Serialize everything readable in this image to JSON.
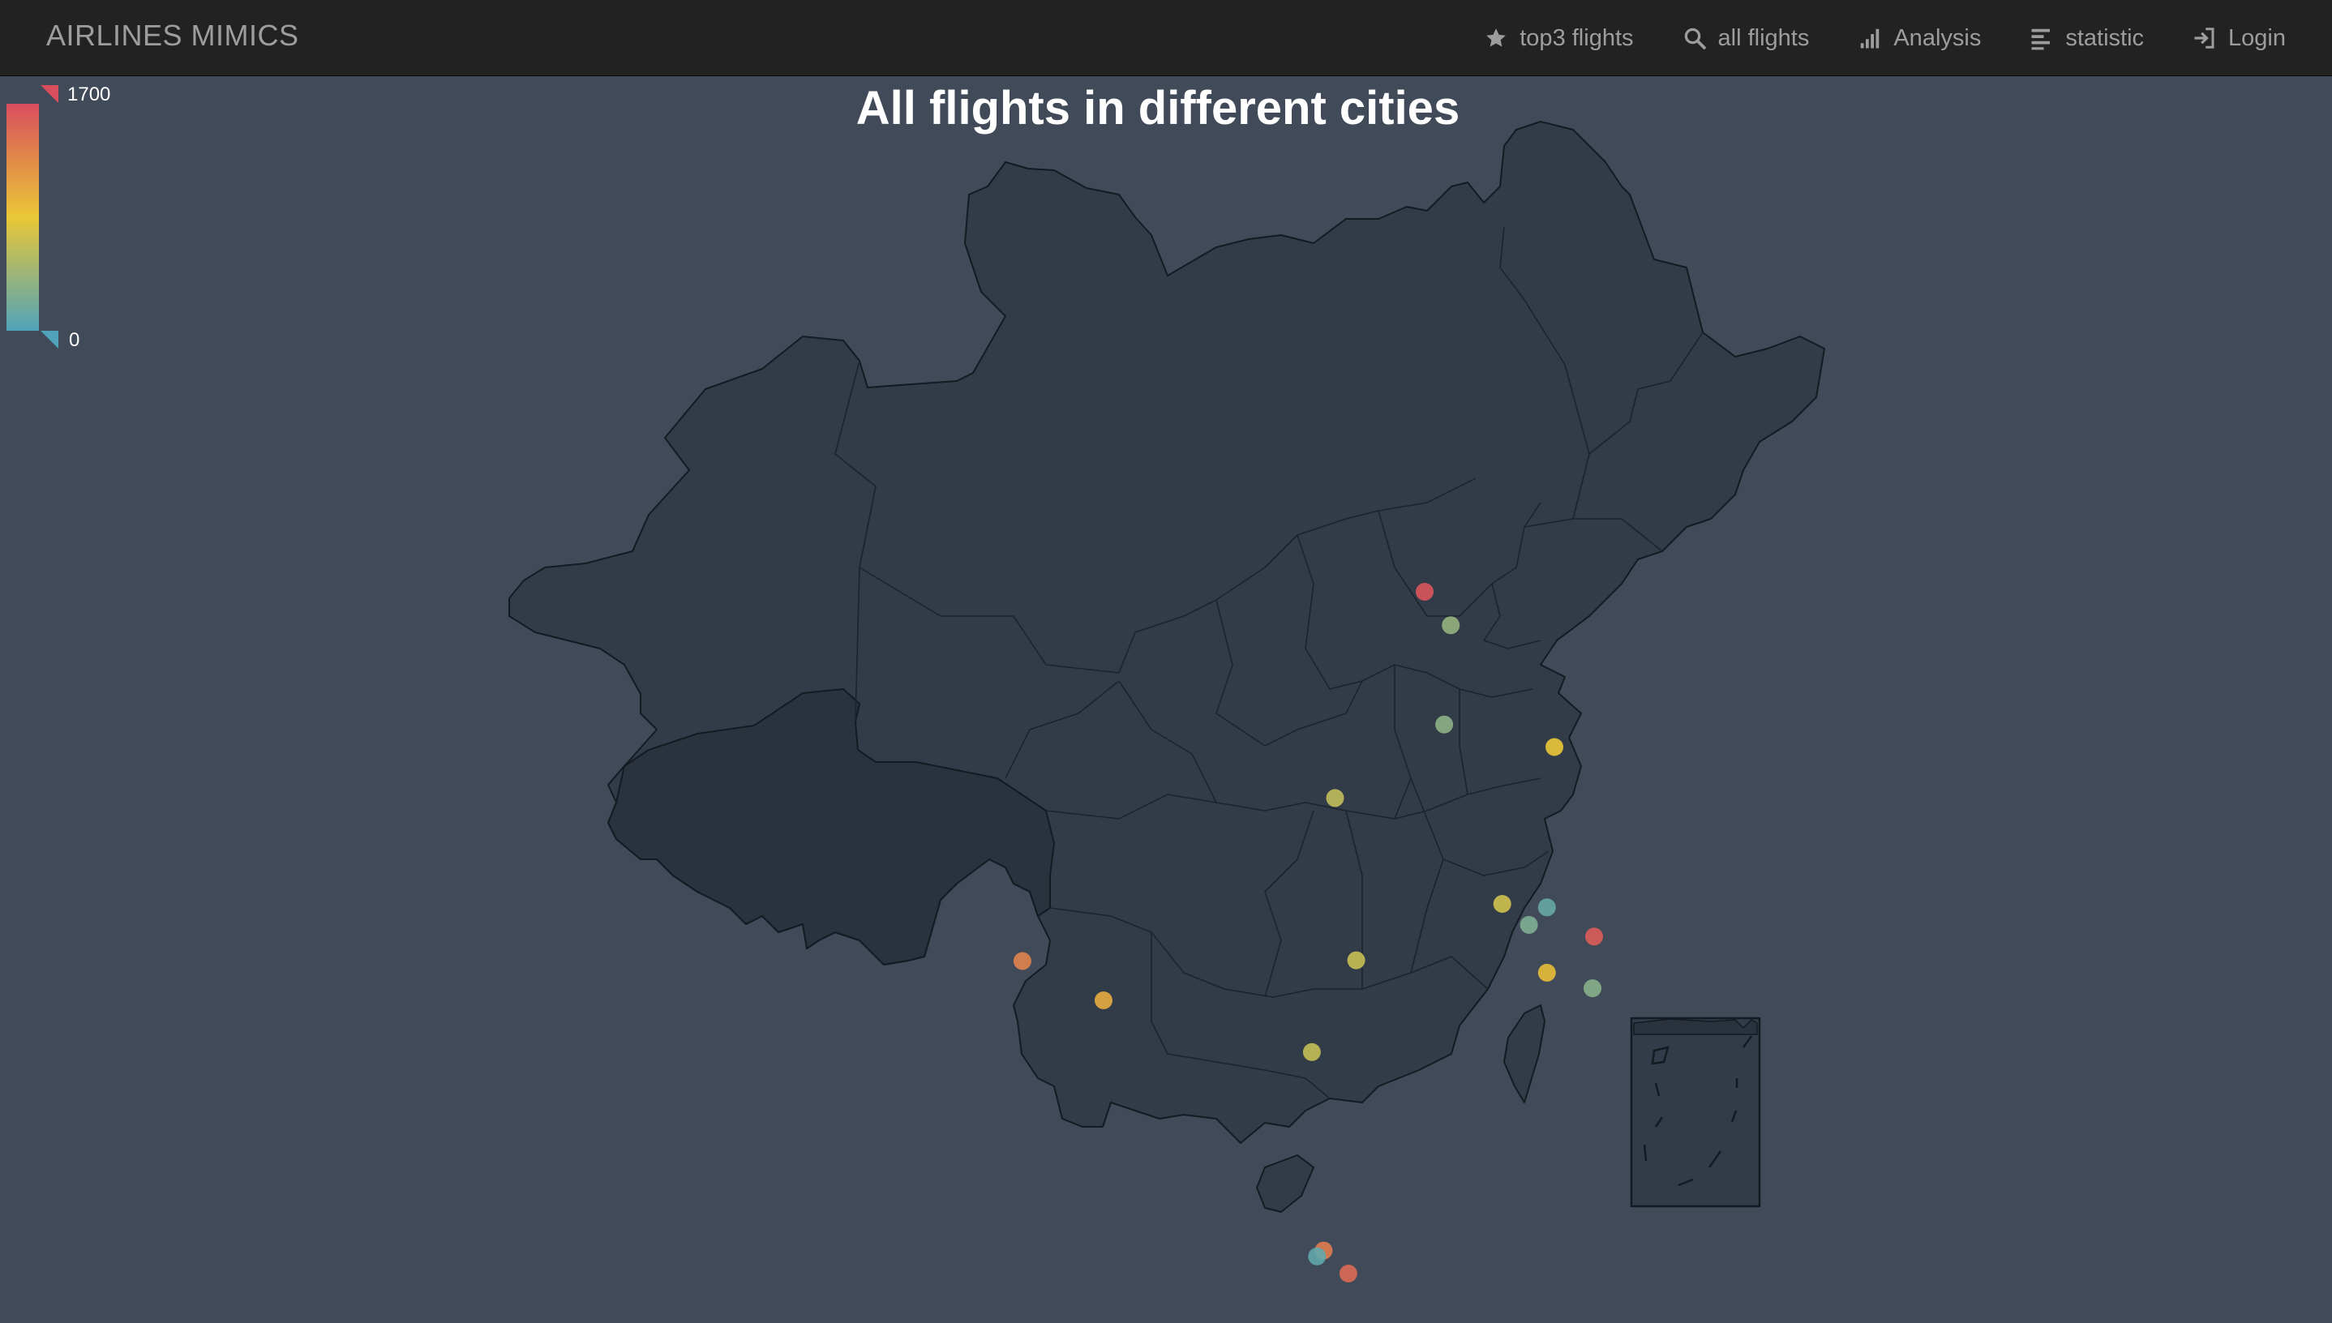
{
  "navbar": {
    "brand": "AIRLINES MIMICS",
    "items": [
      {
        "label": "top3 flights",
        "icon": "star-icon"
      },
      {
        "label": "all flights",
        "icon": "search-icon"
      },
      {
        "label": "Analysis",
        "icon": "signal-bars-icon"
      },
      {
        "label": "statistic",
        "icon": "align-left-icon"
      },
      {
        "label": "Login",
        "icon": "log-in-icon"
      }
    ]
  },
  "chart_data": {
    "type": "scatter",
    "title": "All flights in different cities",
    "visual_map": {
      "min": 0,
      "max": 1700,
      "min_label": "0",
      "max_label": "1700",
      "colors": [
        "#50a3ba",
        "#eac736",
        "#d94e5d"
      ],
      "placement": "top-left"
    },
    "map": "China",
    "points": [
      {
        "lon": 116.4,
        "lat": 40.06,
        "value": 1650
      },
      {
        "lon": 117.2,
        "lat": 39.2,
        "value": 380
      },
      {
        "lon": 117.0,
        "lat": 36.65,
        "value": 330
      },
      {
        "lon": 120.38,
        "lat": 36.07,
        "value": 860
      },
      {
        "lon": 113.65,
        "lat": 34.76,
        "value": 620
      },
      {
        "lon": 118.78,
        "lat": 32.04,
        "value": 700
      },
      {
        "lon": 120.15,
        "lat": 31.95,
        "value": 130
      },
      {
        "lon": 121.6,
        "lat": 31.2,
        "value": 1600
      },
      {
        "lon": 119.6,
        "lat": 31.5,
        "value": 260
      },
      {
        "lon": 120.15,
        "lat": 30.27,
        "value": 920
      },
      {
        "lon": 121.55,
        "lat": 29.87,
        "value": 310
      },
      {
        "lon": 114.3,
        "lat": 30.59,
        "value": 650
      },
      {
        "lon": 112.94,
        "lat": 28.23,
        "value": 640
      },
      {
        "lon": 104.06,
        "lat": 30.57,
        "value": 1320
      },
      {
        "lon": 106.55,
        "lat": 29.56,
        "value": 1050
      },
      {
        "lon": 113.3,
        "lat": 23.13,
        "value": 1380
      },
      {
        "lon": 113.1,
        "lat": 22.98,
        "value": 90
      },
      {
        "lon": 114.06,
        "lat": 22.54,
        "value": 1500
      }
    ]
  },
  "colors": {
    "background": "#404a59",
    "navbar": "#222222",
    "land": "#323c48",
    "land_border": "#111111",
    "tibet": "#2a323d"
  }
}
